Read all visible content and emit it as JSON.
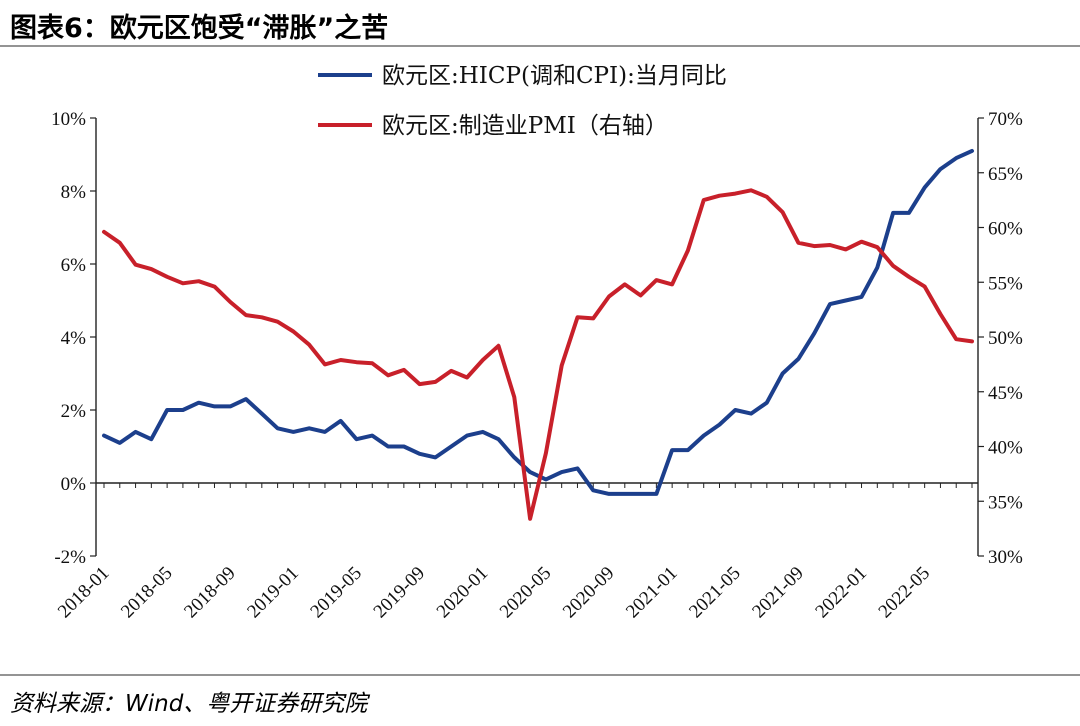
{
  "header": {
    "title": "图表6：欧元区饱受“滞胀”之苦"
  },
  "footer": {
    "source": "资料来源：Wind、粤开证券研究院"
  },
  "colors": {
    "hicp": "#1c3f8c",
    "pmi": "#c8202a",
    "axis": "#222222",
    "rule": "#555555"
  },
  "chart_data": {
    "type": "line",
    "x": [
      "2018-01",
      "2018-02",
      "2018-03",
      "2018-04",
      "2018-05",
      "2018-06",
      "2018-07",
      "2018-08",
      "2018-09",
      "2018-10",
      "2018-11",
      "2018-12",
      "2019-01",
      "2019-02",
      "2019-03",
      "2019-04",
      "2019-05",
      "2019-06",
      "2019-07",
      "2019-08",
      "2019-09",
      "2019-10",
      "2019-11",
      "2019-12",
      "2020-01",
      "2020-02",
      "2020-03",
      "2020-04",
      "2020-05",
      "2020-06",
      "2020-07",
      "2020-08",
      "2020-09",
      "2020-10",
      "2020-11",
      "2020-12",
      "2021-01",
      "2021-02",
      "2021-03",
      "2021-04",
      "2021-05",
      "2021-06",
      "2021-07",
      "2021-08",
      "2021-09",
      "2021-10",
      "2021-11",
      "2021-12",
      "2022-01",
      "2022-02",
      "2022-03",
      "2022-04",
      "2022-05",
      "2022-06",
      "2022-07",
      "2022-08"
    ],
    "xtick_labels": [
      "2018-01",
      "2018-05",
      "2018-09",
      "2019-01",
      "2019-05",
      "2019-09",
      "2020-01",
      "2020-05",
      "2020-09",
      "2021-01",
      "2021-05",
      "2021-09",
      "2022-01",
      "2022-05"
    ],
    "series": [
      {
        "name": "欧元区:HICP(调和CPI):当月同比",
        "axis": "left",
        "values": [
          1.3,
          1.1,
          1.4,
          1.2,
          2.0,
          2.0,
          2.2,
          2.1,
          2.1,
          2.3,
          1.9,
          1.5,
          1.4,
          1.5,
          1.4,
          1.7,
          1.2,
          1.3,
          1.0,
          1.0,
          0.8,
          0.7,
          1.0,
          1.3,
          1.4,
          1.2,
          0.7,
          0.3,
          0.1,
          0.3,
          0.4,
          -0.2,
          -0.3,
          -0.3,
          -0.3,
          -0.3,
          0.9,
          0.9,
          1.3,
          1.6,
          2.0,
          1.9,
          2.2,
          3.0,
          3.4,
          4.1,
          4.9,
          5.0,
          5.1,
          5.9,
          7.4,
          7.4,
          8.1,
          8.6,
          8.9,
          9.1
        ]
      },
      {
        "name": "欧元区:制造业PMI（右轴）",
        "axis": "right",
        "values": [
          59.6,
          58.6,
          56.6,
          56.2,
          55.5,
          54.9,
          55.1,
          54.6,
          53.2,
          52.0,
          51.8,
          51.4,
          50.5,
          49.3,
          47.5,
          47.9,
          47.7,
          47.6,
          46.5,
          47.0,
          45.7,
          45.9,
          46.9,
          46.3,
          47.9,
          49.2,
          44.5,
          33.4,
          39.4,
          47.4,
          51.8,
          51.7,
          53.7,
          54.8,
          53.8,
          55.2,
          54.8,
          57.9,
          62.5,
          62.9,
          63.1,
          63.4,
          62.8,
          61.4,
          58.6,
          58.3,
          58.4,
          58.0,
          58.7,
          58.2,
          56.5,
          55.5,
          54.6,
          52.1,
          49.8,
          49.6
        ]
      }
    ],
    "ylim_left": [
      -2,
      10
    ],
    "yticks_left": [
      "-2%",
      "0%",
      "2%",
      "4%",
      "6%",
      "8%",
      "10%"
    ],
    "ylim_right": [
      30,
      70
    ],
    "yticks_right": [
      "30%",
      "35%",
      "40%",
      "45%",
      "50%",
      "55%",
      "60%",
      "65%",
      "70%"
    ],
    "legend_position": "top-center",
    "grid": false
  }
}
